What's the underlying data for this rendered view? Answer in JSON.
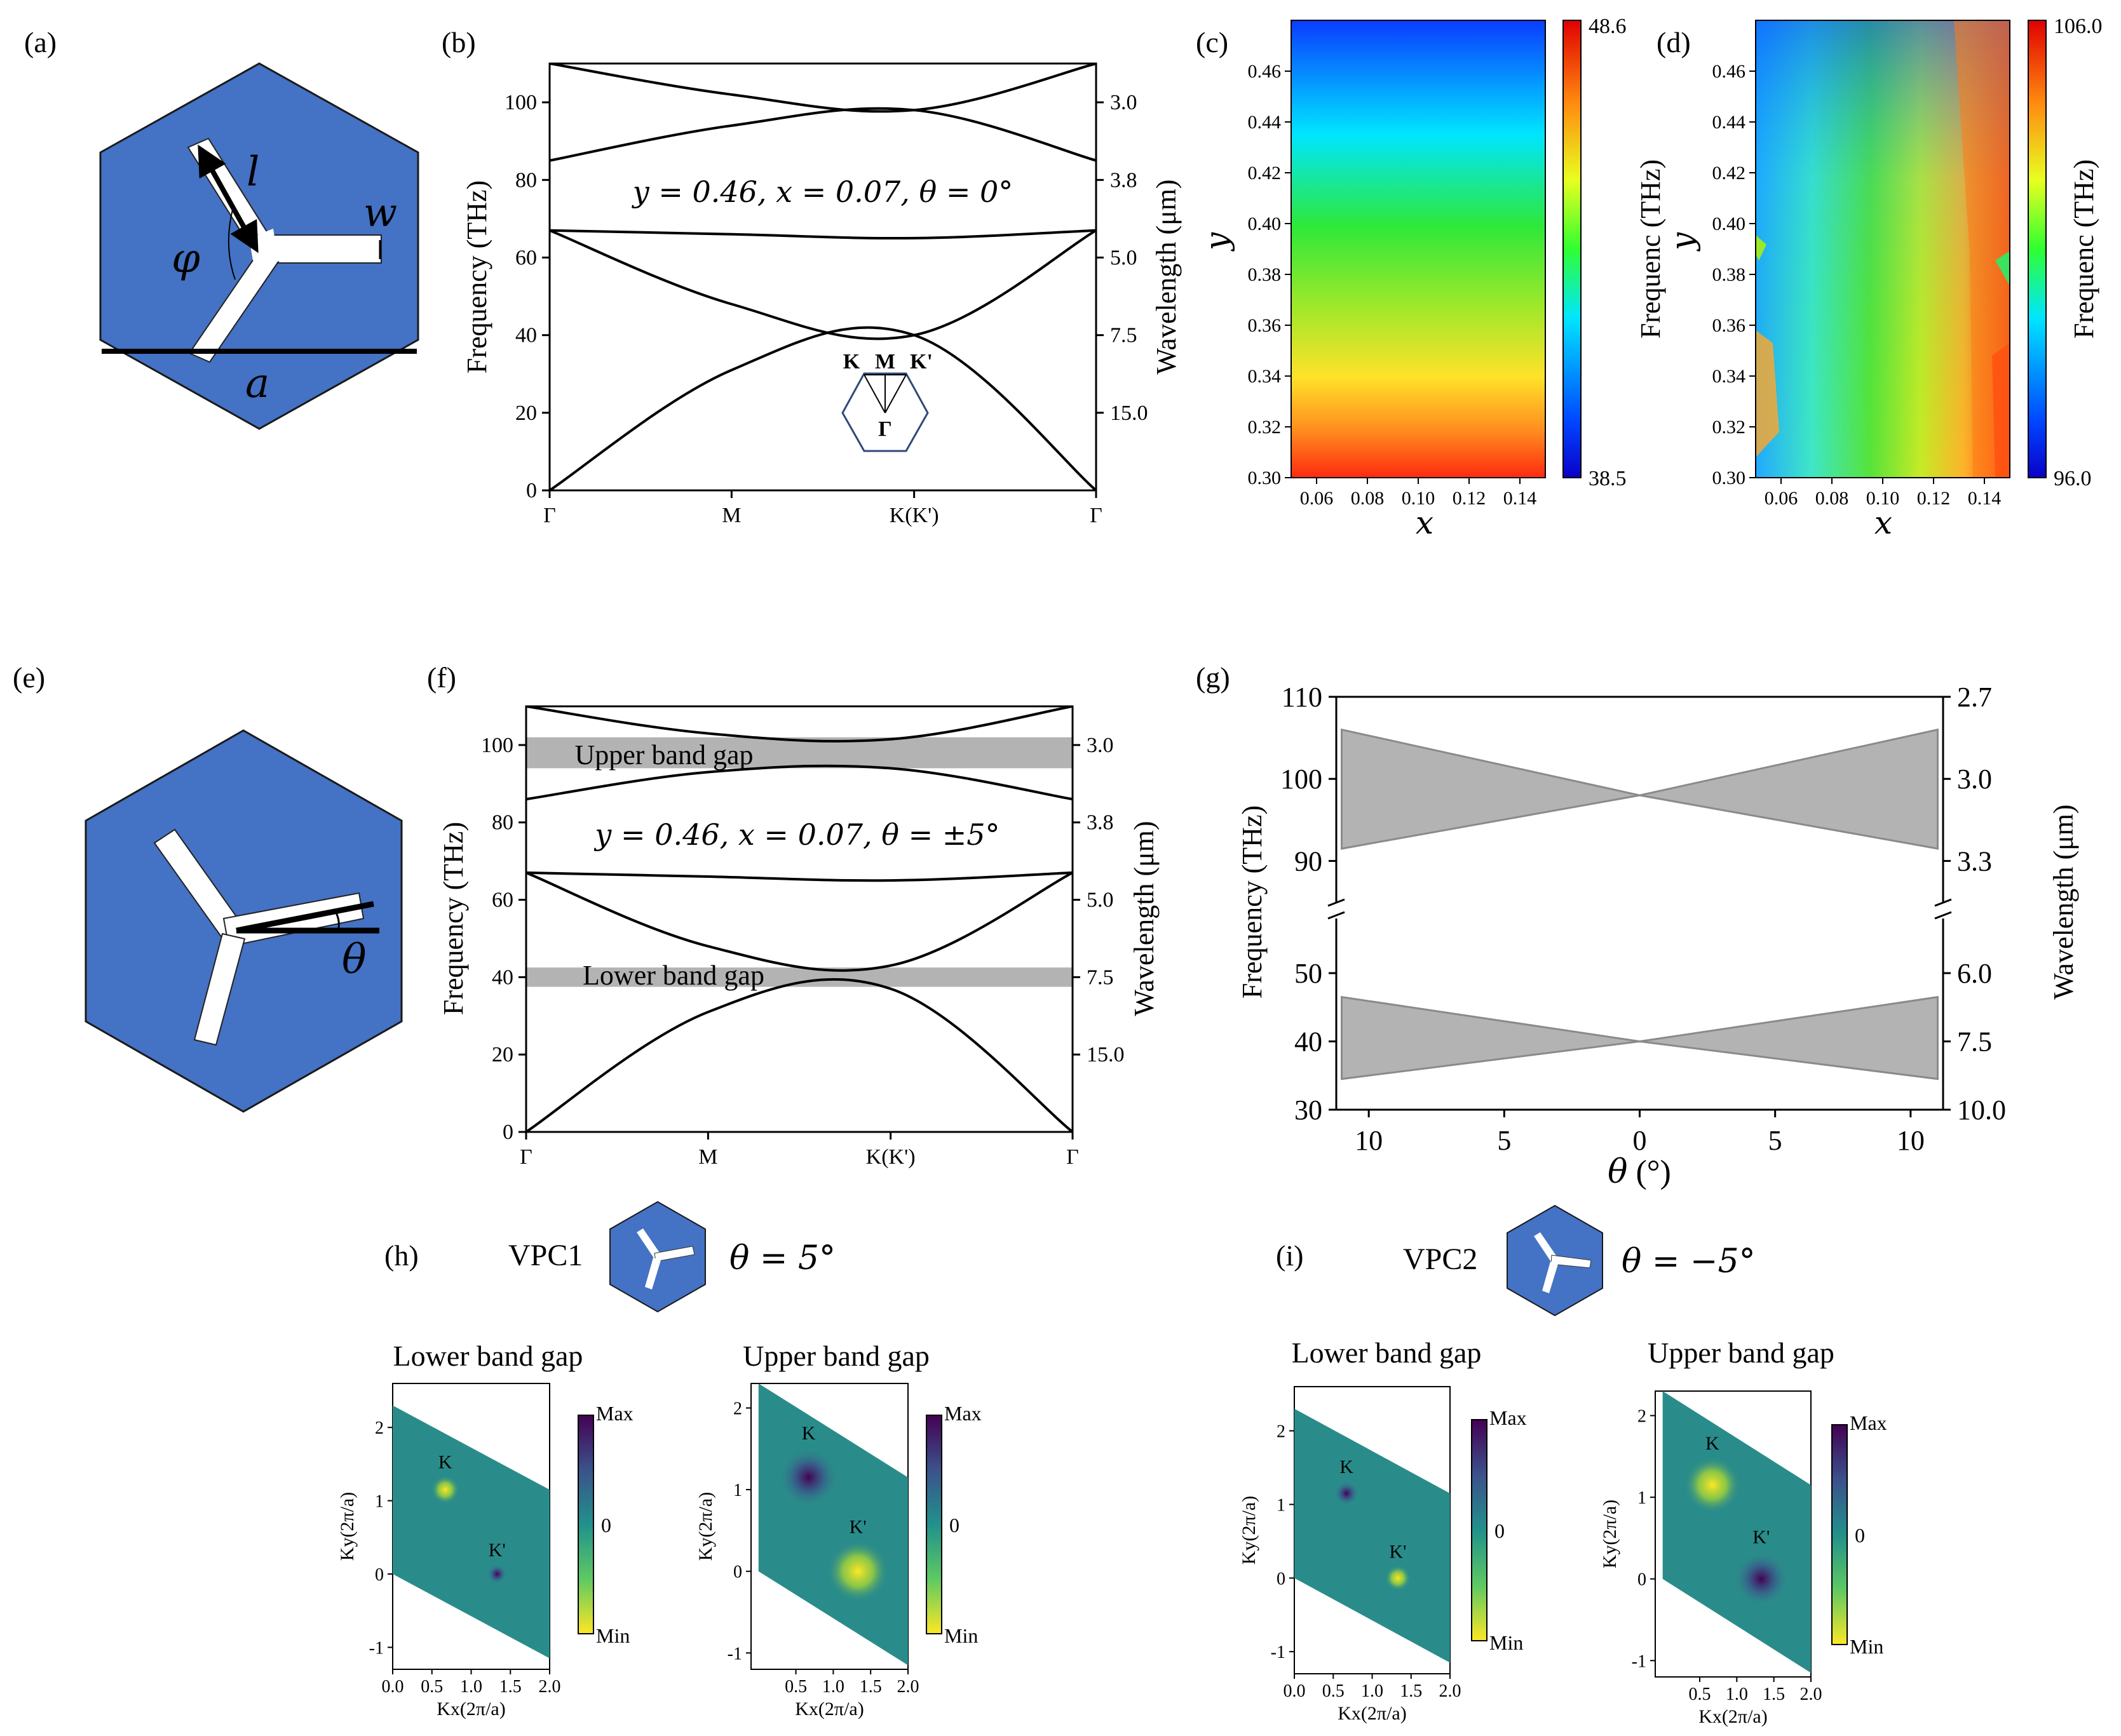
{
  "panels": {
    "a": "(a)",
    "b": "(b)",
    "c": "(c)",
    "d": "(d)",
    "e": "(e)",
    "f": "(f)",
    "g": "(g)",
    "h": "(h)",
    "i": "(i)"
  },
  "unit_cell_a": {
    "symbol_l": "l",
    "symbol_w": "w",
    "symbol_phi": "φ",
    "symbol_a": "a",
    "colors": {
      "hexagon": "#4472c4",
      "arms": "#ffffff"
    }
  },
  "unit_cell_e": {
    "symbol_theta": "θ"
  },
  "band_b": {
    "ylabel": "Frequency (THz)",
    "y2label": "Wavelength (μm)",
    "annotation": "y = 0.46, x = 0.07, θ = 0°",
    "bz_labels": {
      "K": "K",
      "M": "M",
      "Kp": "K'",
      "G": "Γ"
    }
  },
  "band_f": {
    "ylabel": "Frequency (THz)",
    "y2label": "Wavelength (μm)",
    "annotation": "y = 0.46, x = 0.07, θ = ±5°",
    "upper_gap_label": "Upper band gap",
    "lower_gap_label": "Lower band gap"
  },
  "heat_c": {
    "xlabel": "x",
    "ylabel": "y",
    "cbar_label": "Frequenc (THz)",
    "cbar_max": "48.6",
    "cbar_min": "38.5"
  },
  "heat_d": {
    "xlabel": "x",
    "ylabel": "y",
    "cbar_label": "Frequenc (THz)",
    "cbar_max": "106.0",
    "cbar_min": "96.0"
  },
  "gap_g": {
    "ylabel": "Frequency (THz)",
    "y2label": "Wavelength (μm)",
    "xlabel_sym": "θ",
    "xlabel_unit": " (°)"
  },
  "vpc": {
    "vpc1_label": "VPC1",
    "vpc1_theta": "θ = 5°",
    "vpc2_label": "VPC2",
    "vpc2_theta": "θ = −5°"
  },
  "berry": {
    "lower_title": "Lower band gap",
    "upper_title": "Upper band gap",
    "xlabel": "Kx(2π/a)",
    "ylabel": "Ky(2π/a)",
    "K": "K",
    "Kp": "K'",
    "cbar_max": "Max",
    "cbar_zero": "0",
    "cbar_min": "Min"
  },
  "chart_data": [
    {
      "id": "b",
      "type": "line",
      "x": [
        "Γ",
        "M",
        "K(K')",
        "Γ"
      ],
      "ylabel": "Frequency (THz)",
      "y2label": "Wavelength (μm)",
      "ylim": [
        0,
        110
      ],
      "yticks": [
        0,
        20,
        40,
        60,
        80,
        100
      ],
      "y2ticks": [
        "3.0",
        "3.8",
        "5.0",
        "7.5",
        "15.0"
      ],
      "y2tick_freqs": [
        100,
        80,
        60,
        40,
        20
      ],
      "series": [
        {
          "values": [
            0,
            31,
            40,
            0
          ]
        },
        {
          "values": [
            67,
            48,
            40,
            67
          ]
        },
        {
          "values": [
            67,
            66,
            65,
            67
          ]
        },
        {
          "values": [
            85,
            94,
            98,
            85
          ]
        },
        {
          "values": [
            110,
            102,
            98,
            110
          ]
        }
      ]
    },
    {
      "id": "f",
      "type": "line",
      "x": [
        "Γ",
        "M",
        "K(K')",
        "Γ"
      ],
      "ylabel": "Frequency (THz)",
      "y2label": "Wavelength (μm)",
      "ylim": [
        0,
        110
      ],
      "yticks": [
        0,
        20,
        40,
        60,
        80,
        100
      ],
      "y2ticks": [
        "3.0",
        "3.8",
        "5.0",
        "7.5",
        "15.0"
      ],
      "y2tick_freqs": [
        100,
        80,
        60,
        40,
        20
      ],
      "gaps": [
        [
          94,
          102
        ],
        [
          37.5,
          42.5
        ]
      ],
      "series": [
        {
          "values": [
            0,
            31,
            37,
            0
          ]
        },
        {
          "values": [
            67,
            48,
            43,
            67
          ]
        },
        {
          "values": [
            67,
            66,
            65,
            67
          ]
        },
        {
          "values": [
            86,
            93,
            94,
            86
          ]
        },
        {
          "values": [
            110,
            103,
            101.5,
            110
          ]
        }
      ]
    },
    {
      "id": "c",
      "type": "heatmap",
      "xlabel": "x",
      "ylabel": "y",
      "xlim": [
        0.05,
        0.15
      ],
      "ylim": [
        0.3,
        0.48
      ],
      "xticks": [
        "0.06",
        "0.08",
        "0.10",
        "0.12",
        "0.14"
      ],
      "yticks": [
        "0.30",
        "0.32",
        "0.34",
        "0.36",
        "0.38",
        "0.40",
        "0.42",
        "0.44",
        "0.46"
      ],
      "colorbar": {
        "label": "Frequenc (THz)",
        "min": 38.5,
        "max": 48.6
      }
    },
    {
      "id": "d",
      "type": "heatmap",
      "xlabel": "x",
      "ylabel": "y",
      "xlim": [
        0.05,
        0.15
      ],
      "ylim": [
        0.3,
        0.48
      ],
      "xticks": [
        "0.06",
        "0.08",
        "0.10",
        "0.12",
        "0.14"
      ],
      "yticks": [
        "0.30",
        "0.32",
        "0.34",
        "0.36",
        "0.38",
        "0.40",
        "0.42",
        "0.44",
        "0.46"
      ],
      "colorbar": {
        "label": "Frequenc (THz)",
        "min": 96.0,
        "max": 106.0
      }
    },
    {
      "id": "g",
      "type": "area",
      "xlabel": "θ (°)",
      "ylabel": "Frequency (THz)",
      "y2label": "Wavelength (μm)",
      "xticks": [
        "10",
        "5",
        "0",
        "5",
        "10"
      ],
      "upper_axis": {
        "ylim": [
          85,
          110
        ],
        "yticks": [
          90,
          100,
          110
        ],
        "y2ticks": [
          "3.3",
          "3.0",
          "2.7"
        ]
      },
      "lower_axis": {
        "ylim": [
          30,
          58
        ],
        "yticks": [
          30,
          40,
          50
        ],
        "y2ticks": [
          "10.0",
          "7.5",
          "6.0"
        ]
      },
      "series": [
        {
          "name": "upper gap",
          "theta_abs": [
            11,
            0,
            11
          ],
          "top": [
            106,
            98,
            106
          ],
          "bottom": [
            91.5,
            98,
            91.5
          ]
        },
        {
          "name": "lower gap",
          "theta_abs": [
            11,
            0,
            11
          ],
          "top": [
            46.5,
            40,
            46.5
          ],
          "bottom": [
            34.5,
            40,
            34.5
          ]
        }
      ]
    }
  ]
}
